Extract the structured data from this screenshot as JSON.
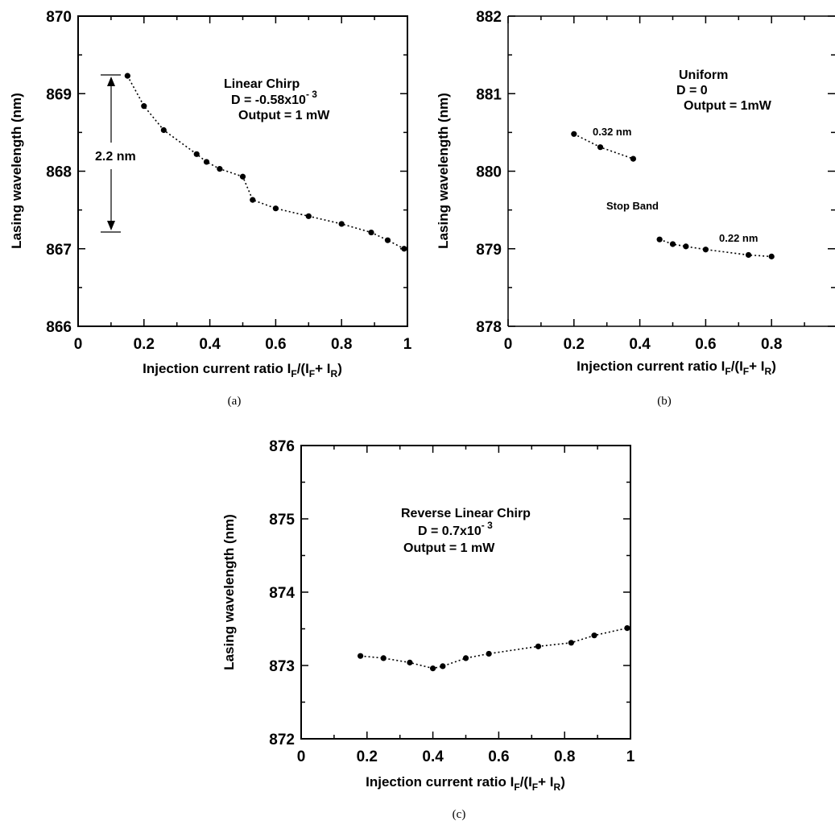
{
  "chart_data": [
    {
      "type": "scatter",
      "xlabel": "Injection current ratio I",
      "xlabel_tail": "/(I",
      "xlabel_plus": "+ I",
      "xlabel_end": ")",
      "xlabel_sub_f": "F",
      "xlabel_sub_r": "R",
      "ylabel": "Lasing wavelength (nm)",
      "xlim": [
        0,
        1
      ],
      "ylim": [
        866,
        870
      ],
      "xticks": [
        "0",
        "0.2",
        "0.4",
        "0.6",
        "0.8",
        "1"
      ],
      "yticks": [
        "866",
        "867",
        "868",
        "869",
        "870"
      ],
      "caption": "(a)",
      "annotations": {
        "line1": "Linear Chirp",
        "line2": "D = -0.58x10",
        "line2_exp": "- 3",
        "line3": "Output = 1 mW",
        "span": "2.2 nm"
      },
      "series": [
        {
          "x": [
            0.15,
            0.2,
            0.26,
            0.36,
            0.39,
            0.43,
            0.5,
            0.53,
            0.6,
            0.7,
            0.8,
            0.89,
            0.94,
            0.99
          ],
          "y": [
            869.23,
            868.84,
            868.53,
            868.22,
            868.12,
            868.03,
            867.93,
            867.63,
            867.52,
            867.42,
            867.32,
            867.21,
            867.11,
            867.0
          ]
        }
      ]
    },
    {
      "type": "scatter",
      "xlabel": "Injection current ratio I",
      "xlabel_tail": "/(I",
      "xlabel_plus": "+ I",
      "xlabel_end": ")",
      "xlabel_sub_f": "F",
      "xlabel_sub_r": "R",
      "ylabel": "Lasing wavelength (nm)",
      "xlim": [
        0,
        1
      ],
      "ylim": [
        878,
        882
      ],
      "xticks": [
        "0",
        "0.2",
        "0.4",
        "0.6",
        "0.8"
      ],
      "yticks": [
        "878",
        "879",
        "880",
        "881",
        "882"
      ],
      "caption": "(b)",
      "annotations": {
        "line1": "Uniform",
        "line2": "D = 0",
        "line3": "Output = 1mW",
        "label_low": "0.32 nm",
        "label_high": "0.22 nm",
        "stop_band": "Stop Band"
      },
      "series": [
        {
          "x": [
            0.2,
            0.28,
            0.38
          ],
          "y": [
            880.48,
            880.31,
            880.16
          ]
        },
        {
          "x": [
            0.46,
            0.5,
            0.54,
            0.6,
            0.73,
            0.8
          ],
          "y": [
            879.12,
            879.06,
            879.03,
            878.99,
            878.92,
            878.9
          ]
        }
      ]
    },
    {
      "type": "scatter",
      "xlabel": "Injection current ratio  I",
      "xlabel_tail": "/(I",
      "xlabel_plus": "+ I",
      "xlabel_end": ")",
      "xlabel_sub_f": "F",
      "xlabel_sub_r": "R",
      "ylabel": "Lasing wavelength (nm)",
      "xlim": [
        0,
        1
      ],
      "ylim": [
        872,
        876
      ],
      "xticks": [
        "0",
        "0.2",
        "0.4",
        "0.6",
        "0.8",
        "1"
      ],
      "yticks": [
        "872",
        "873",
        "874",
        "875",
        "876"
      ],
      "caption": "(c)",
      "annotations": {
        "line1": "Reverse Linear Chirp",
        "line2": "D = 0.7x10",
        "line2_exp": "- 3",
        "line3": "Output = 1 mW"
      },
      "series": [
        {
          "x": [
            0.18,
            0.25,
            0.33,
            0.4,
            0.43,
            0.5,
            0.57,
            0.72,
            0.82,
            0.89,
            0.99
          ],
          "y": [
            873.13,
            873.1,
            873.04,
            872.96,
            872.99,
            873.1,
            873.16,
            873.26,
            873.31,
            873.41,
            873.51
          ]
        }
      ]
    }
  ]
}
